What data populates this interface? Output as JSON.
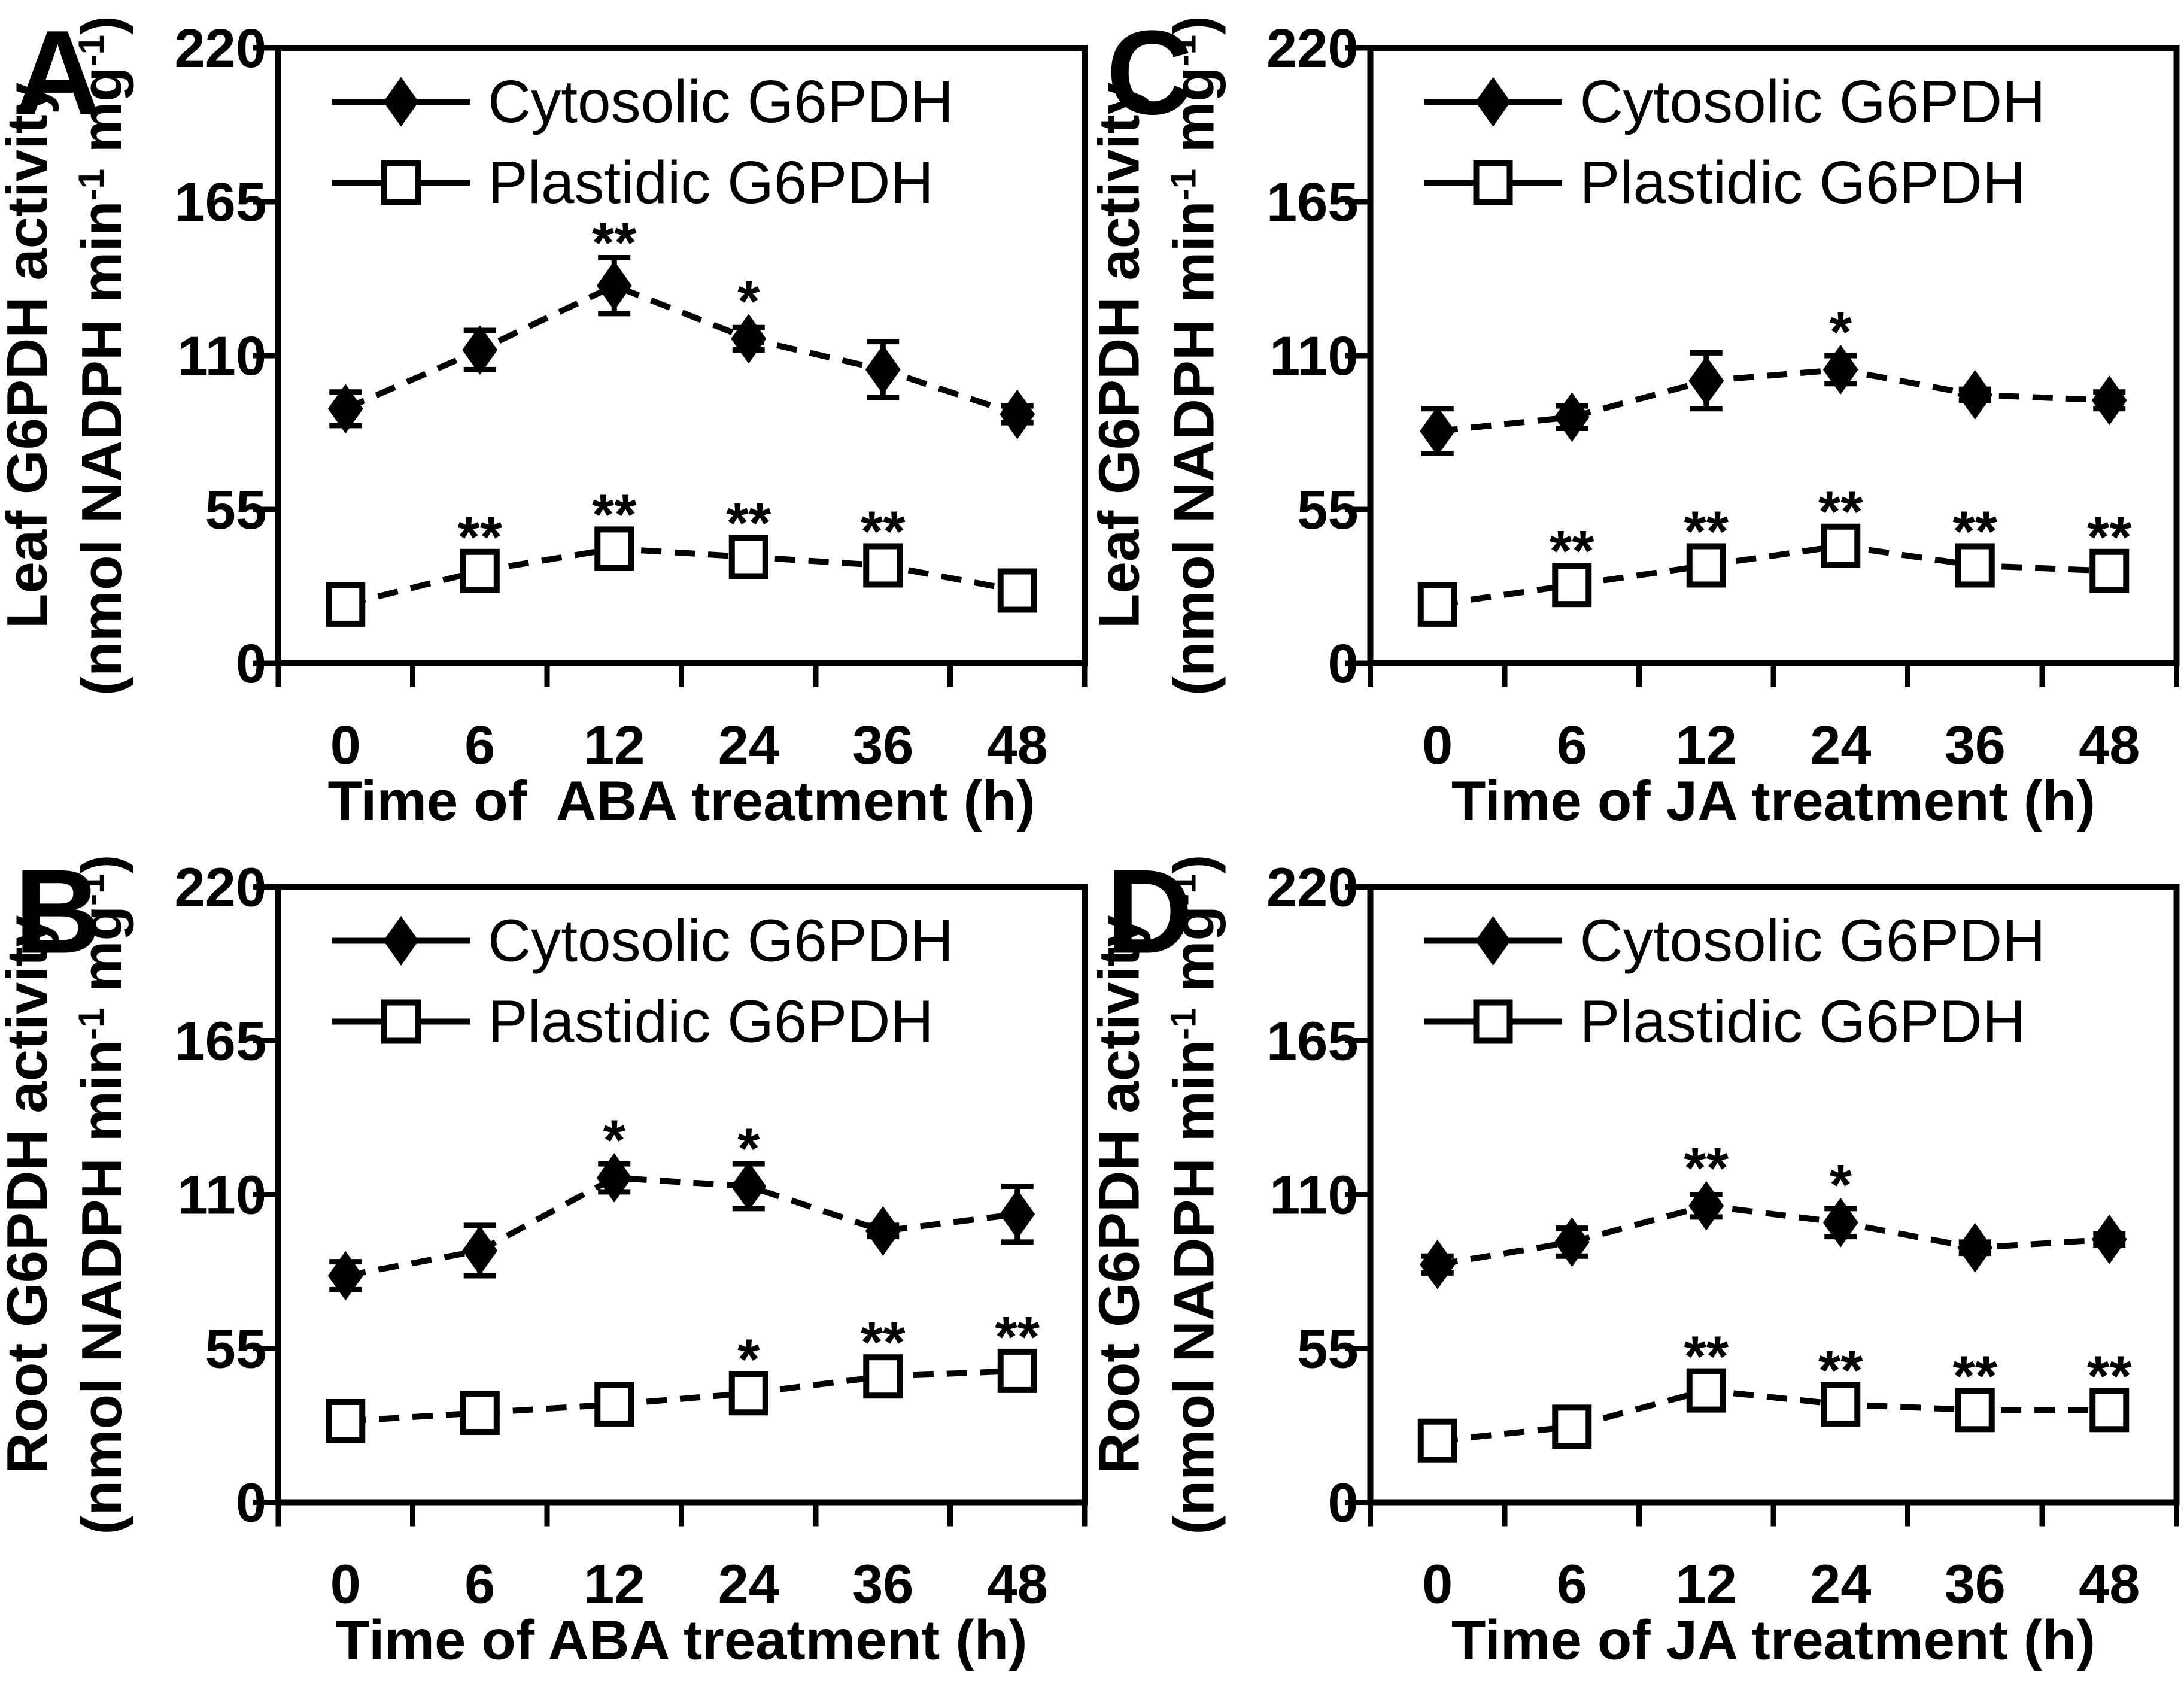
{
  "figure": {
    "background_color": "#ffffff",
    "foreground_color": "#000000",
    "panel_letters": [
      "A",
      "C",
      "B",
      "D"
    ]
  },
  "legend": {
    "items": [
      {
        "label": "Cytosolic G6PDH",
        "marker": "filled-diamond-icon"
      },
      {
        "label": "Plastidic G6PDH",
        "marker": "open-square-icon"
      }
    ]
  },
  "chart_data": [
    {
      "panel": "A",
      "type": "line",
      "title": "",
      "ylabel": "Leaf G6PDH activity",
      "ylabel_units": "(nmol NADPH min⁻¹ mg⁻¹)",
      "xlabel": "Time of  ABA treatment (h)",
      "categories": [
        "0",
        "6",
        "12",
        "24",
        "36",
        "48"
      ],
      "yticks": [
        "0",
        "55",
        "110",
        "165",
        "220"
      ],
      "ylim": [
        0,
        220
      ],
      "grid": false,
      "legend_position": "top-left-inside",
      "series": [
        {
          "name": "Cytosolic G6PDH",
          "marker": "filled-diamond",
          "line_style": "dashed",
          "values": [
            91,
            112,
            135,
            116,
            105,
            89
          ],
          "errors": [
            6,
            7,
            10,
            4,
            10,
            3
          ],
          "significance": [
            "",
            "",
            "**",
            "*",
            "",
            ""
          ]
        },
        {
          "name": "Plastidic G6PDH",
          "marker": "open-square",
          "line_style": "dashed",
          "values": [
            21,
            33,
            41,
            38,
            35,
            26
          ],
          "errors": [
            5,
            3,
            4,
            3,
            3,
            3
          ],
          "significance": [
            "",
            "**",
            "**",
            "**",
            "**",
            ""
          ]
        }
      ]
    },
    {
      "panel": "C",
      "type": "line",
      "title": "",
      "ylabel": "Leaf G6PDH activity",
      "ylabel_units": "(nmol NADPH min⁻¹ mg⁻¹)",
      "xlabel": "Time of JA treatment (h)",
      "categories": [
        "0",
        "6",
        "12",
        "24",
        "36",
        "48"
      ],
      "yticks": [
        "0",
        "55",
        "110",
        "165",
        "220"
      ],
      "ylim": [
        0,
        220
      ],
      "grid": false,
      "legend_position": "top-left-inside",
      "series": [
        {
          "name": "Cytosolic G6PDH",
          "marker": "filled-diamond",
          "line_style": "dashed",
          "values": [
            83,
            88,
            101,
            105,
            96,
            94
          ],
          "errors": [
            8,
            4,
            10,
            5,
            2,
            3
          ],
          "significance": [
            "",
            "",
            "",
            "*",
            "",
            ""
          ]
        },
        {
          "name": "Plastidic G6PDH",
          "marker": "open-square",
          "line_style": "dashed",
          "values": [
            21,
            28,
            35,
            42,
            35,
            33
          ],
          "errors": [
            3,
            3,
            3,
            3,
            3,
            3
          ],
          "significance": [
            "",
            "**",
            "**",
            "**",
            "**",
            "**"
          ]
        }
      ]
    },
    {
      "panel": "B",
      "type": "line",
      "title": "",
      "ylabel": "Root G6PDH activity",
      "ylabel_units": "(nmol NADPH min⁻¹ mg⁻¹)",
      "xlabel": "Time of ABA treatment (h)",
      "categories": [
        "0",
        "6",
        "12",
        "24",
        "36",
        "48"
      ],
      "yticks": [
        "0",
        "55",
        "110",
        "165",
        "220"
      ],
      "ylim": [
        0,
        220
      ],
      "grid": false,
      "legend_position": "top-left-inside",
      "series": [
        {
          "name": "Cytosolic G6PDH",
          "marker": "filled-diamond",
          "line_style": "dashed",
          "values": [
            81,
            90,
            116,
            113,
            97,
            103
          ],
          "errors": [
            5,
            9,
            5,
            8,
            2,
            10
          ],
          "significance": [
            "",
            "",
            "*",
            "*",
            "",
            ""
          ]
        },
        {
          "name": "Plastidic G6PDH",
          "marker": "open-square",
          "line_style": "dashed",
          "values": [
            29,
            32,
            35,
            39,
            45,
            47
          ],
          "errors": [
            3,
            3,
            3,
            3,
            3,
            4
          ],
          "significance": [
            "",
            "",
            "",
            "*",
            "**",
            "**"
          ]
        }
      ]
    },
    {
      "panel": "D",
      "type": "line",
      "title": "",
      "ylabel": "Root G6PDH activity",
      "ylabel_units": "(nmol NADPH min⁻¹ mg⁻¹)",
      "xlabel": "Time of JA treatment (h)",
      "categories": [
        "0",
        "6",
        "12",
        "24",
        "36",
        "48"
      ],
      "yticks": [
        "0",
        "55",
        "110",
        "165",
        "220"
      ],
      "ylim": [
        0,
        220
      ],
      "grid": false,
      "legend_position": "top-left-inside",
      "series": [
        {
          "name": "Cytosolic G6PDH",
          "marker": "filled-diamond",
          "line_style": "dashed",
          "values": [
            85,
            93,
            106,
            100,
            91,
            94
          ],
          "errors": [
            3,
            5,
            4,
            5,
            2,
            2
          ],
          "significance": [
            "",
            "",
            "**",
            "*",
            "",
            ""
          ]
        },
        {
          "name": "Plastidic G6PDH",
          "marker": "open-square",
          "line_style": "dashed",
          "values": [
            22,
            27,
            40,
            35,
            33,
            33
          ],
          "errors": [
            3,
            3,
            3,
            3,
            3,
            3
          ],
          "significance": [
            "",
            "",
            "**",
            "**",
            "**",
            "**"
          ]
        }
      ]
    }
  ]
}
